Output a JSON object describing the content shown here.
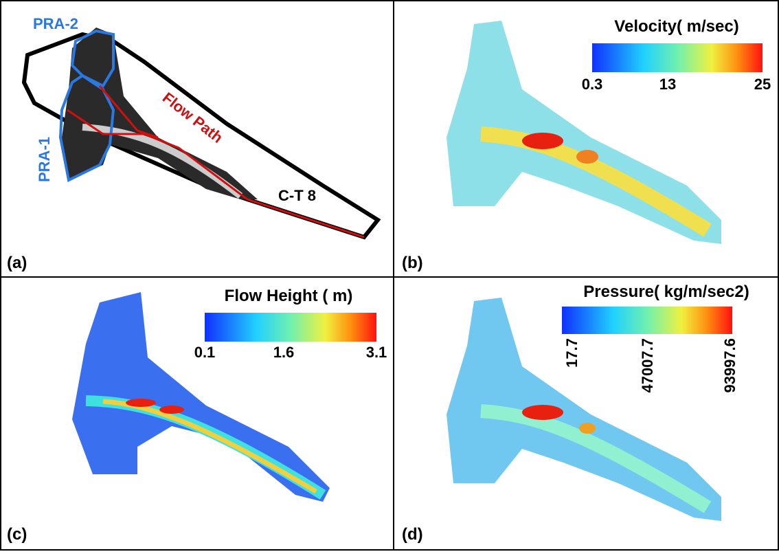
{
  "panels": [
    {
      "label": "(a)",
      "annotations": {
        "pra2": "PRA-2",
        "pra1": "PRA-1",
        "flow_path": "Flow Path",
        "ct": "C-T 8"
      }
    },
    {
      "label": "(b)",
      "legend": {
        "title": "Velocity( m/sec)",
        "ticks": [
          "0.3",
          "13",
          "25"
        ]
      }
    },
    {
      "label": "(c)",
      "legend": {
        "title": "Flow Height ( m)",
        "ticks": [
          "0.1",
          "1.6",
          "3.1"
        ]
      }
    },
    {
      "label": "(d)",
      "legend": {
        "title": "Pressure( kg/m/sec2)",
        "ticks": [
          "17.7",
          "47007.7",
          "93997.6"
        ]
      }
    }
  ]
}
